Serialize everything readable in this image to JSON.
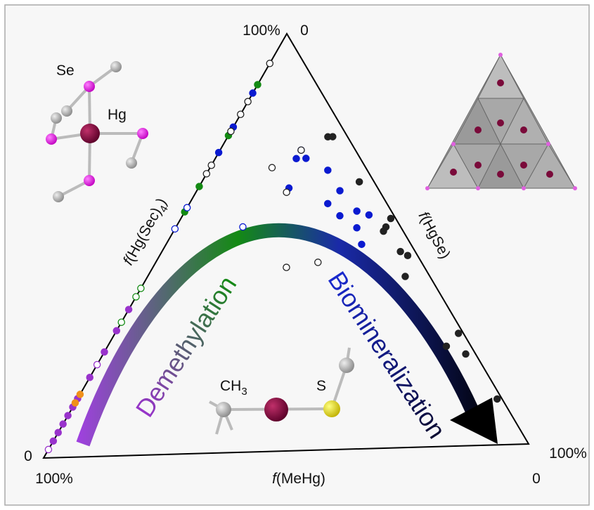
{
  "chart_data": {
    "type": "ternary",
    "corner_labels": {
      "top": [
        "100%",
        "0"
      ],
      "left": [
        "0",
        "100%"
      ],
      "right": [
        "100%",
        "0"
      ]
    },
    "axis_labels": {
      "left": {
        "italic": "f",
        "text": "(Hg(Sec)",
        "sub": "4",
        "close": ")"
      },
      "right": {
        "italic": "f",
        "text": "(HgSe)"
      },
      "bottom": {
        "italic": "f",
        "text": "(MeHg)"
      }
    },
    "arrow_labels": [
      "Demethylation",
      "Biomineralization"
    ],
    "atom_labels": {
      "se": "Se",
      "hg": "Hg",
      "ch3": {
        "text": "CH",
        "sub": "3"
      },
      "s": "S"
    },
    "series": [
      {
        "color": "#138a13",
        "filled": true,
        "points": [
          [
            88,
            12,
            0
          ],
          [
            76,
            24,
            0
          ],
          [
            64,
            36,
            0
          ],
          [
            58,
            42,
            0
          ]
        ]
      },
      {
        "color": "#0a1ad0",
        "filled": true,
        "points": [
          [
            86,
            14,
            0
          ],
          [
            78,
            22,
            0
          ],
          [
            72,
            28,
            0
          ],
          [
            72,
            11,
            17
          ],
          [
            70,
            13,
            17
          ],
          [
            70,
            11,
            19
          ],
          [
            67,
            8,
            25
          ],
          [
            63,
            18,
            19
          ],
          [
            62,
            8,
            30
          ],
          [
            59,
            12,
            29
          ],
          [
            56,
            11,
            33
          ],
          [
            57,
            7,
            36
          ],
          [
            56,
            5,
            39
          ],
          [
            53,
            9,
            38
          ],
          [
            49,
            10,
            41
          ]
        ]
      },
      {
        "color": "#222222",
        "filled": false,
        "points": [
          [
            93,
            7,
            0
          ],
          [
            84,
            16,
            0
          ],
          [
            81,
            19,
            0
          ],
          [
            77,
            23,
            0
          ],
          [
            69,
            31,
            0
          ],
          [
            67,
            33,
            0
          ],
          [
            72,
            11,
            17
          ],
          [
            68,
            19,
            13
          ],
          [
            62,
            19,
            19
          ],
          [
            44,
            28,
            28
          ],
          [
            45,
            21,
            34
          ]
        ]
      },
      {
        "color": "#0a1ad0",
        "filled": false,
        "points": [
          [
            59,
            41,
            0
          ],
          [
            54,
            46,
            0
          ],
          [
            54,
            32,
            14
          ]
        ]
      },
      {
        "color": "#138a13",
        "filled": false,
        "points": [
          [
            40,
            60,
            0
          ],
          [
            38,
            62,
            0
          ],
          [
            32,
            68,
            0
          ]
        ]
      },
      {
        "color": "#9933cc",
        "filled": true,
        "points": [
          [
            35,
            65,
            0
          ],
          [
            30,
            70,
            0
          ],
          [
            25,
            75,
            0
          ],
          [
            19,
            81,
            0
          ],
          [
            14,
            86,
            0
          ],
          [
            12,
            88,
            0
          ],
          [
            10,
            90,
            0
          ],
          [
            8,
            92,
            0
          ],
          [
            6,
            94,
            0
          ],
          [
            4,
            96,
            0
          ]
        ]
      },
      {
        "color": "#9933cc",
        "filled": false,
        "points": [
          [
            22,
            78,
            0
          ],
          [
            2,
            98,
            0
          ]
        ]
      },
      {
        "color": "#f0901a",
        "filled": true,
        "points": [
          [
            15,
            85,
            0
          ],
          [
            13,
            87,
            0
          ]
        ]
      },
      {
        "color": "#222222",
        "filled": true,
        "points": [
          [
            75,
            4,
            21
          ],
          [
            75,
            3,
            22
          ],
          [
            64,
            3,
            33
          ],
          [
            55,
            1,
            44
          ],
          [
            53,
            3,
            44
          ],
          [
            52,
            4,
            44
          ],
          [
            47,
            3,
            50
          ],
          [
            46,
            2,
            52
          ],
          [
            41,
            5,
            54
          ],
          [
            27,
            1,
            72
          ],
          [
            24,
            5,
            71
          ],
          [
            22,
            2,
            76
          ],
          [
            11,
            1,
            88
          ]
        ]
      }
    ]
  }
}
